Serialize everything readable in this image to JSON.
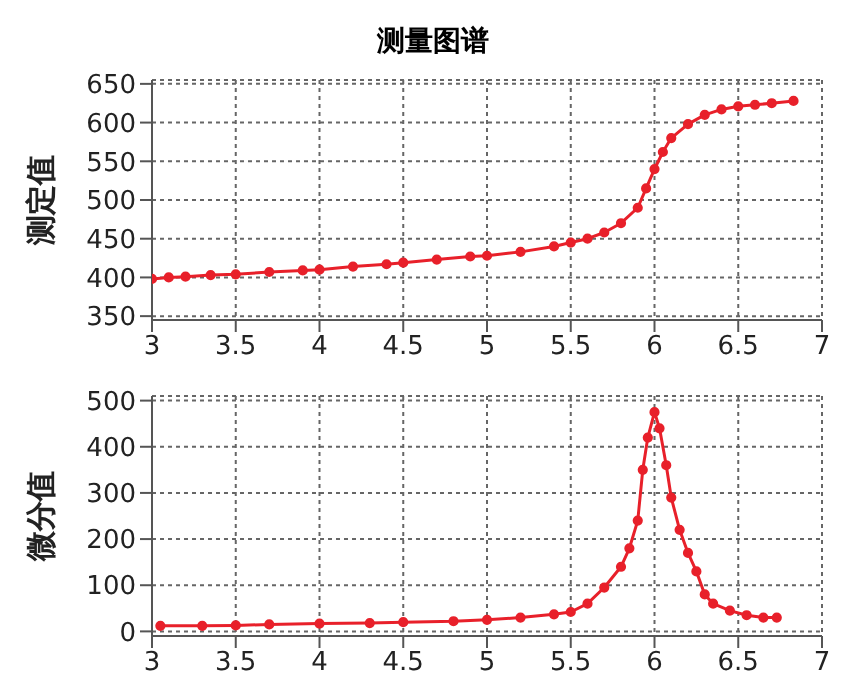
{
  "chart_data": [
    {
      "type": "line",
      "title": "测量图谱",
      "ylabel": "测定值",
      "xlim": [
        3,
        7
      ],
      "xticks": [
        3,
        3.5,
        4,
        4.5,
        5,
        5.5,
        6,
        6.5,
        7
      ],
      "ylim": [
        345,
        655
      ],
      "yticks": [
        350,
        400,
        450,
        500,
        550,
        600,
        650
      ],
      "grid": true,
      "marker": "circle",
      "line_style": "solid",
      "legend": false,
      "series": [
        {
          "color": "#e8202a",
          "x": [
            3.0,
            3.1,
            3.2,
            3.35,
            3.5,
            3.7,
            3.9,
            4.0,
            4.2,
            4.4,
            4.5,
            4.7,
            4.9,
            5.0,
            5.2,
            5.4,
            5.5,
            5.6,
            5.7,
            5.8,
            5.9,
            5.95,
            6.0,
            6.05,
            6.1,
            6.2,
            6.3,
            6.4,
            6.5,
            6.6,
            6.7,
            6.83
          ],
          "values": [
            398,
            400,
            401,
            403,
            404,
            407,
            409,
            410,
            414,
            417,
            419,
            423,
            427,
            428,
            433,
            440,
            445,
            450,
            458,
            470,
            490,
            515,
            540,
            562,
            580,
            598,
            610,
            617,
            621,
            623,
            625,
            628
          ]
        }
      ]
    },
    {
      "type": "line",
      "ylabel": "微分值",
      "xlim": [
        3,
        7
      ],
      "xticks": [
        3,
        3.5,
        4,
        4.5,
        5,
        5.5,
        6,
        6.5,
        7
      ],
      "ylim": [
        -10,
        510
      ],
      "yticks": [
        0,
        100,
        200,
        300,
        400,
        500
      ],
      "grid": true,
      "marker": "circle",
      "line_style": "solid",
      "legend": false,
      "series": [
        {
          "color": "#e8202a",
          "x": [
            3.05,
            3.3,
            3.5,
            3.7,
            4.0,
            4.3,
            4.5,
            4.8,
            5.0,
            5.2,
            5.4,
            5.5,
            5.6,
            5.7,
            5.8,
            5.85,
            5.9,
            5.93,
            5.96,
            6.0,
            6.03,
            6.07,
            6.1,
            6.15,
            6.2,
            6.25,
            6.3,
            6.35,
            6.45,
            6.55,
            6.65,
            6.73
          ],
          "values": [
            12,
            12,
            13,
            15,
            17,
            18,
            20,
            22,
            25,
            30,
            37,
            42,
            60,
            95,
            140,
            180,
            240,
            350,
            420,
            475,
            440,
            360,
            290,
            220,
            170,
            130,
            80,
            60,
            45,
            35,
            30,
            30
          ]
        }
      ]
    }
  ]
}
